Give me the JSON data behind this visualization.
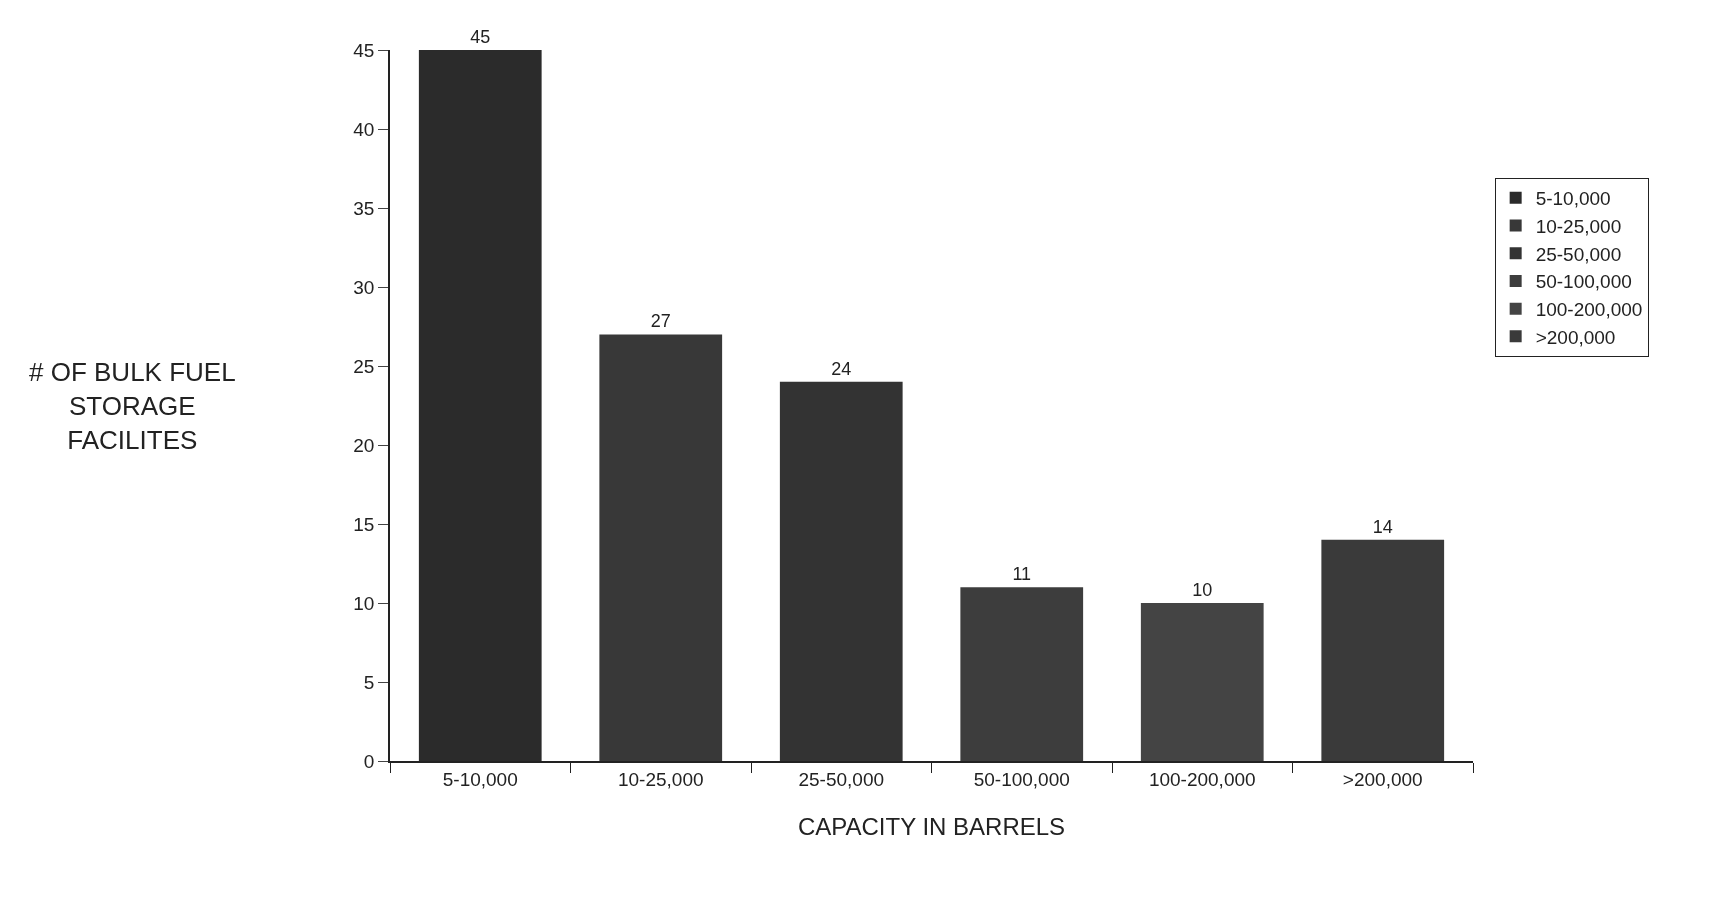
{
  "chart_data": {
    "type": "bar",
    "xlabel": "CAPACITY IN BARRELS",
    "ylabel": "# OF BULK FUEL STORAGE FACILITES",
    "categories": [
      "5-10,000",
      "10-25,000",
      "25-50,000",
      "50-100,000",
      "100-200,000",
      ">200,000"
    ],
    "series": [
      {
        "name": "5-10,000",
        "color": "#2b2b2b",
        "values": [
          45,
          null,
          null,
          null,
          null,
          null
        ]
      },
      {
        "name": "10-25,000",
        "color": "#383838",
        "values": [
          null,
          27,
          null,
          null,
          null,
          null
        ]
      },
      {
        "name": "25-50,000",
        "color": "#333333",
        "values": [
          null,
          null,
          24,
          null,
          null,
          null
        ]
      },
      {
        "name": "50-100,000",
        "color": "#3d3d3d",
        "values": [
          null,
          null,
          null,
          11,
          null,
          null
        ]
      },
      {
        "name": "100-200,000",
        "color": "#444444",
        "values": [
          null,
          null,
          null,
          null,
          10,
          null
        ]
      },
      {
        "name": ">200,000",
        "color": "#3a3a3a",
        "values": [
          null,
          null,
          null,
          null,
          null,
          14
        ]
      }
    ],
    "ylim": [
      0,
      45
    ],
    "yticks": [
      0,
      5,
      10,
      15,
      20,
      25,
      30,
      35,
      40,
      45
    ],
    "data_labels": true,
    "legend": "right"
  }
}
